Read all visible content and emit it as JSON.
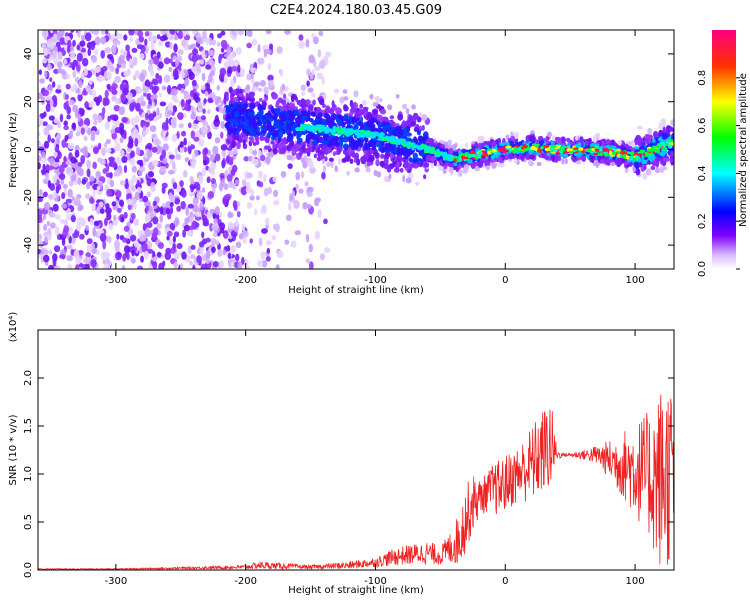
{
  "title": "C2E4.2024.180.03.45.G09",
  "chart_data": [
    {
      "type": "heatmap",
      "xlabel": "Height of straight line (km)",
      "ylabel": "Frequency (Hz)",
      "xlim": [
        -360,
        130
      ],
      "ylim": [
        -50,
        50
      ],
      "x_ticks": [
        -300,
        -200,
        -100,
        0,
        100
      ],
      "y_ticks": [
        -40,
        -20,
        0,
        20,
        40
      ],
      "colorbar": {
        "label": "Normalized spectral amplitude",
        "range": [
          0,
          1
        ],
        "ticks": [
          "0.0",
          "0.2",
          "0.4",
          "0.6",
          "0.8"
        ],
        "colors": [
          "#ffffff",
          "#8000ff",
          "#0000ff",
          "#00ffff",
          "#00ff00",
          "#ffff00",
          "#ff0000",
          "#ff0080"
        ]
      },
      "ridge": {
        "description_points_x": [
          -210,
          -150,
          -100,
          -60,
          -40,
          -20,
          0,
          20,
          40,
          60,
          80,
          100,
          120,
          130
        ],
        "description_points_y": [
          13,
          9,
          6,
          0,
          -4,
          -2,
          0,
          1,
          0,
          0,
          -1,
          -3,
          1,
          3
        ]
      }
    },
    {
      "type": "line",
      "xlabel": "Height of straight line (km)",
      "ylabel": "SNR (10 * v/v)",
      "y_multiplier": "(x10⁴)",
      "xlim": [
        -360,
        130
      ],
      "ylim": [
        0,
        2.5
      ],
      "x_ticks": [
        -300,
        -200,
        -100,
        0,
        100
      ],
      "y_ticks": [
        "0.0",
        "0.5",
        "1.0",
        "1.5",
        "2.0"
      ],
      "series": [
        {
          "color": "#ee2222",
          "x": [
            -360,
            -300,
            -250,
            -200,
            -190,
            -150,
            -120,
            -100,
            -90,
            -80,
            -60,
            -50,
            -40,
            -35,
            -30,
            -25,
            -20,
            -15,
            -10,
            -5,
            0,
            10,
            20,
            30,
            35,
            40,
            45,
            50,
            60,
            70,
            80,
            90,
            100,
            110,
            115,
            120,
            125,
            130
          ],
          "y": [
            0.01,
            0.01,
            0.02,
            0.03,
            0.05,
            0.03,
            0.05,
            0.08,
            0.12,
            0.15,
            0.18,
            0.15,
            0.25,
            0.35,
            0.55,
            0.7,
            0.75,
            0.8,
            0.85,
            0.85,
            0.9,
            1.0,
            1.1,
            1.25,
            1.3,
            1.2,
            1.2,
            1.2,
            1.2,
            1.2,
            1.15,
            1.1,
            1.05,
            1.0,
            0.95,
            0.95,
            1.0,
            1.05
          ],
          "noise_amplitude": [
            0.005,
            0.005,
            0.01,
            0.02,
            0.04,
            0.02,
            0.04,
            0.05,
            0.08,
            0.1,
            0.12,
            0.1,
            0.2,
            0.3,
            0.35,
            0.3,
            0.2,
            0.2,
            0.25,
            0.3,
            0.3,
            0.3,
            0.4,
            0.45,
            0.5,
            0.05,
            0.02,
            0.02,
            0.05,
            0.1,
            0.2,
            0.35,
            0.5,
            0.65,
            0.8,
            1.0,
            1.0,
            0.9
          ]
        }
      ]
    }
  ]
}
